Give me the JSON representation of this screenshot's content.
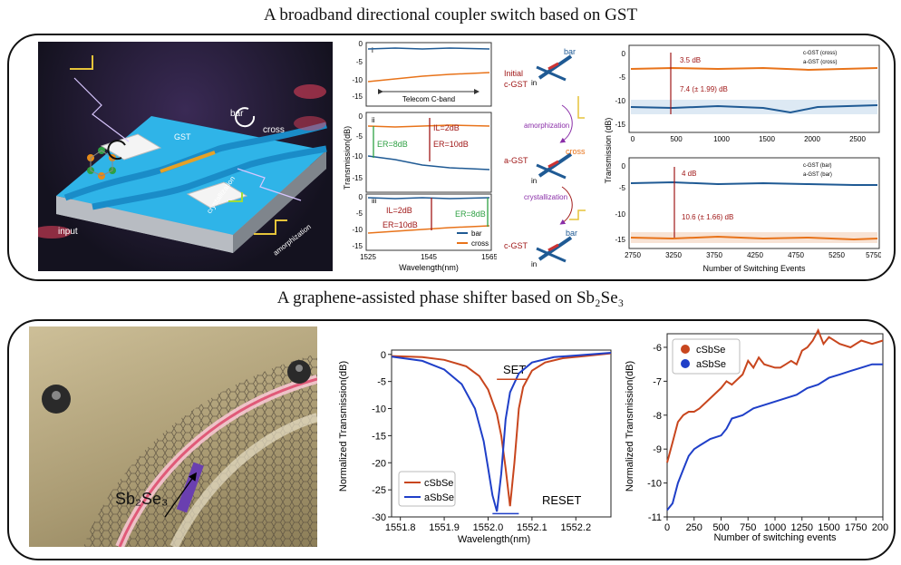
{
  "titles": {
    "top": "A broadband directional coupler switch based on GST",
    "bottom": "A graphene-assisted phase shifter based on Sb₂Se₃"
  },
  "device_top": {
    "labels": {
      "bar": "bar",
      "cross": "cross",
      "gst": "GST",
      "input": "input",
      "crystallization": "crystallization",
      "amorphization": "amorphization"
    }
  },
  "transmission_spectra": {
    "ylabel": "Transmission(dB)",
    "xlabel": "Wavelength(nm)",
    "xticks": [
      "1525",
      "1545",
      "1565"
    ],
    "panel_i": {
      "roman": "i",
      "yticks": [
        "0",
        "-5",
        "-10",
        "-15"
      ],
      "band_label": "Telecom C-band"
    },
    "panel_ii": {
      "roman": "ii",
      "yticks": [
        "0",
        "-5",
        "-10",
        "-15"
      ],
      "er": "ER=8dB",
      "il": "IL=2dB",
      "er2": "ER=10dB"
    },
    "panel_iii": {
      "roman": "iii",
      "yticks": [
        "0",
        "-5",
        "-10",
        "-15"
      ],
      "il": "IL=2dB",
      "er": "ER=10dB",
      "er2": "ER=8dB"
    },
    "legend": [
      "bar",
      "cross"
    ]
  },
  "states": {
    "initial": "Initial",
    "cgst": "c-GST",
    "agst": "a-GST",
    "amorphization": "amorphization",
    "crystallization": "crystallization",
    "bar": "bar",
    "cross": "cross",
    "in": "in"
  },
  "switching_top": {
    "ylabel": "Transmission (dB)",
    "xlabel": "Number of Switching Events",
    "upper": {
      "xticks": [
        "0",
        "500",
        "1000",
        "1500",
        "2000",
        "2500"
      ],
      "yticks": [
        "0",
        "-5",
        "-10",
        "-15"
      ],
      "ann1": "3.5 dB",
      "ann2": "7.4 (± 1.99) dB",
      "legend": [
        "c-GST (cross)",
        "a-GST (cross)"
      ]
    },
    "lower": {
      "xticks": [
        "2750",
        "3250",
        "3750",
        "4250",
        "4750",
        "5250",
        "5750"
      ],
      "yticks": [
        "0",
        "-5",
        "-10",
        "-15"
      ],
      "ann1": "4 dB",
      "ann2": "10.6 (± 1.66) dB",
      "legend": [
        "c-GST (bar)",
        "a-GST (bar)"
      ]
    }
  },
  "device_bottom": {
    "label": "Sb₂Se₃"
  },
  "chart_data": [
    {
      "type": "line",
      "xlabel": "Wavelength(nm)",
      "ylabel": "Normalized Transmission(dB)",
      "xlim": [
        1551.78,
        1552.28
      ],
      "ylim": [
        -30,
        0.8
      ],
      "xticks": [
        "1551.8",
        "1551.9",
        "1552.0",
        "1552.1",
        "1552.2"
      ],
      "yticks": [
        "0",
        "-5",
        "-10",
        "-15",
        "-20",
        "-25",
        "-30"
      ],
      "annotations": [
        "SET",
        "RESET"
      ],
      "series": [
        {
          "name": "cSbSe",
          "color": "#c8461e",
          "x": [
            1551.78,
            1551.85,
            1551.9,
            1551.95,
            1551.98,
            1552.0,
            1552.02,
            1552.03,
            1552.04,
            1552.05,
            1552.06,
            1552.07,
            1552.08,
            1552.1,
            1552.13,
            1552.17,
            1552.22,
            1552.28
          ],
          "y": [
            -0.3,
            -0.5,
            -1.0,
            -2.2,
            -4.0,
            -6.5,
            -11,
            -15,
            -21,
            -28,
            -20,
            -10,
            -6,
            -3,
            -1.5,
            -0.7,
            -0.3,
            0.2
          ]
        },
        {
          "name": "aSbSe",
          "color": "#1f3fc8",
          "x": [
            1551.78,
            1551.85,
            1551.9,
            1551.94,
            1551.97,
            1551.99,
            1552.0,
            1552.01,
            1552.02,
            1552.03,
            1552.04,
            1552.05,
            1552.07,
            1552.1,
            1552.15,
            1552.2,
            1552.28
          ],
          "y": [
            -0.4,
            -1.2,
            -2.8,
            -5.5,
            -10,
            -16,
            -21,
            -26,
            -29,
            -22,
            -12,
            -7,
            -3.5,
            -1.5,
            -0.5,
            -0.2,
            0.3
          ]
        }
      ]
    },
    {
      "type": "line",
      "xlabel": "Number of switching events",
      "ylabel": "Normalized Transmission(dB)",
      "xlim": [
        0,
        2000
      ],
      "ylim": [
        -11,
        -5.6
      ],
      "xticks": [
        "0",
        "250",
        "500",
        "750",
        "1000",
        "1250",
        "1500",
        "1750",
        "2000"
      ],
      "yticks": [
        "-6",
        "-7",
        "-8",
        "-9",
        "-10",
        "-11"
      ],
      "series": [
        {
          "name": "cSbSe",
          "color": "#c8461e",
          "x": [
            0,
            50,
            100,
            150,
            200,
            250,
            300,
            400,
            500,
            550,
            600,
            700,
            750,
            800,
            850,
            900,
            1000,
            1050,
            1100,
            1150,
            1200,
            1250,
            1300,
            1350,
            1400,
            1450,
            1500,
            1600,
            1700,
            1800,
            1900,
            2000
          ],
          "y": [
            -9.4,
            -8.8,
            -8.2,
            -8.0,
            -7.9,
            -7.9,
            -7.8,
            -7.5,
            -7.2,
            -7.0,
            -7.1,
            -6.8,
            -6.4,
            -6.6,
            -6.3,
            -6.5,
            -6.6,
            -6.6,
            -6.5,
            -6.4,
            -6.5,
            -6.1,
            -6.0,
            -5.8,
            -5.5,
            -5.9,
            -5.7,
            -5.9,
            -6.0,
            -5.8,
            -5.9,
            -5.8
          ]
        },
        {
          "name": "aSbSe",
          "color": "#1f3fc8",
          "x": [
            0,
            50,
            100,
            150,
            200,
            250,
            300,
            400,
            500,
            550,
            600,
            700,
            800,
            900,
            1000,
            1100,
            1200,
            1300,
            1400,
            1500,
            1600,
            1700,
            1800,
            1900,
            2000
          ],
          "y": [
            -10.8,
            -10.6,
            -10.0,
            -9.6,
            -9.2,
            -9.0,
            -8.9,
            -8.7,
            -8.6,
            -8.4,
            -8.1,
            -8.0,
            -7.8,
            -7.7,
            -7.6,
            -7.5,
            -7.4,
            -7.2,
            -7.1,
            -6.9,
            -6.8,
            -6.7,
            -6.6,
            -6.5,
            -6.5
          ]
        }
      ]
    }
  ],
  "colors": {
    "orange": "#e8731a",
    "blue": "#1f5a94",
    "red_series": "#c8461e",
    "blue_series": "#1f3fc8",
    "darkred": "#a01818"
  }
}
